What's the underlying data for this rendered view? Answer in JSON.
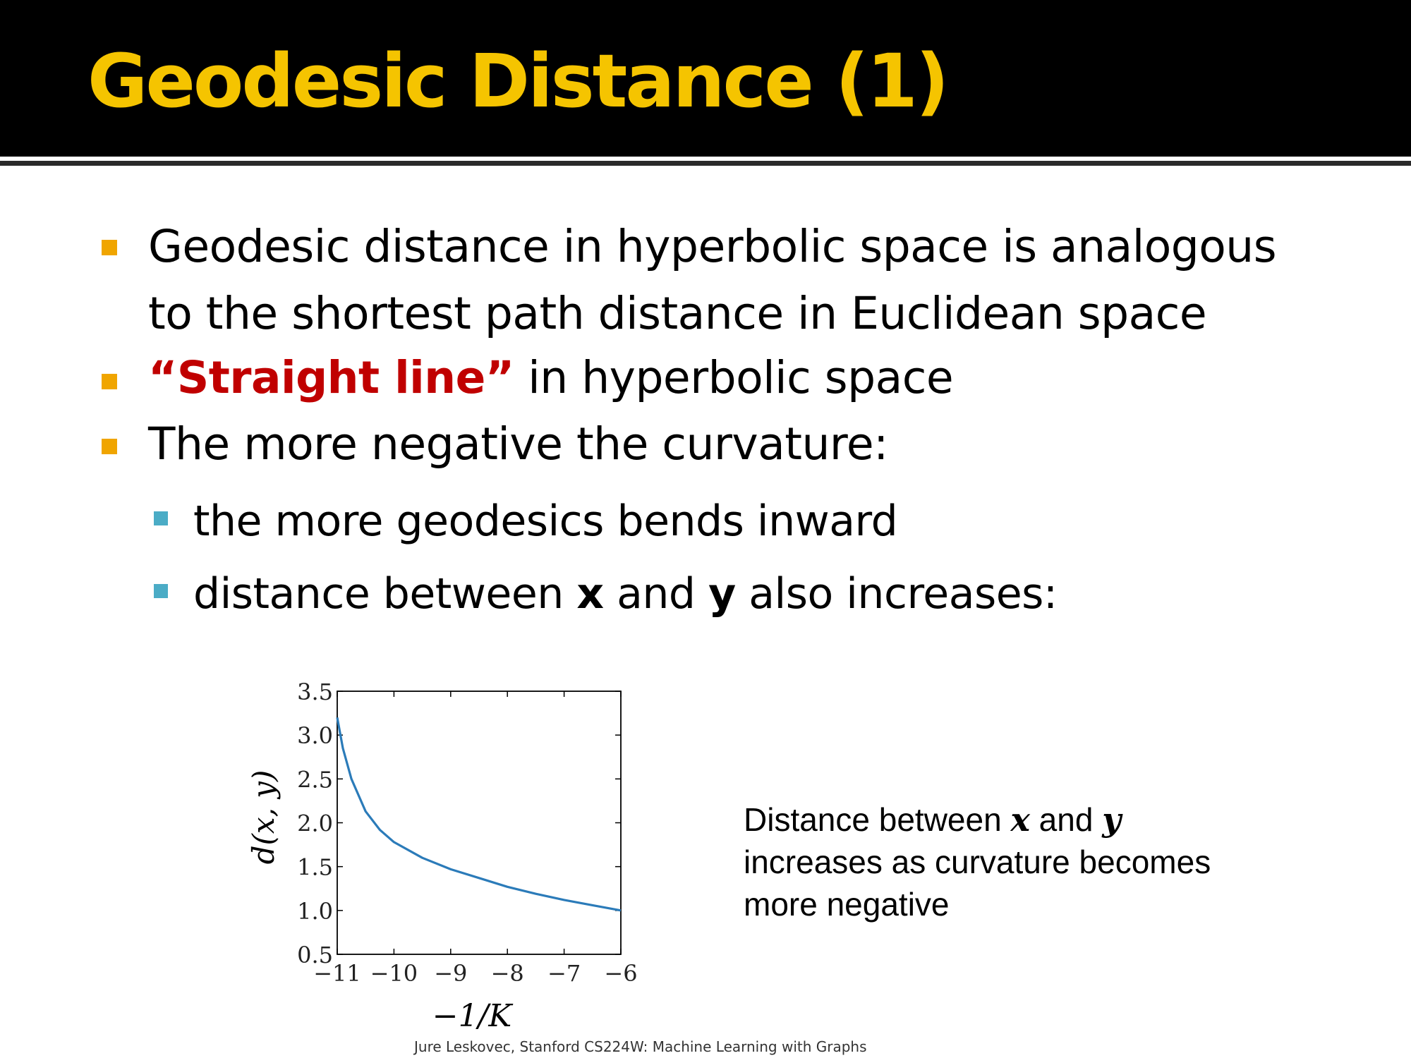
{
  "slide": {
    "title": "Geodesic Distance (1)",
    "colors": {
      "title": "#f5c400",
      "bullet_level1": "#f0a500",
      "bullet_level2": "#4bacc6",
      "emphasis": "#c00000",
      "curve": "#2b7bb9"
    },
    "bullets": [
      {
        "line1": "Geodesic distance in hyperbolic space is analogous",
        "line2": "to the shortest path distance in Euclidean space"
      },
      {
        "emph": "“Straight line”",
        "rest": " in hyperbolic space"
      },
      {
        "text": "The more negative the curvature:"
      }
    ],
    "sub_bullets": [
      {
        "text": "the more geodesics bends inward"
      },
      {
        "pre": "distance between ",
        "x": "x",
        "mid": " and ",
        "y": "y",
        "post": " also increases:"
      }
    ],
    "caption": {
      "pre": "Distance between ",
      "x": "x",
      "mid": " and ",
      "y": "y",
      "line2": "increases as curvature becomes",
      "line3": "more negative"
    },
    "footer": "Jure Leskovec, Stanford CS224W: Machine Learning with Graphs"
  },
  "chart_data": {
    "type": "line",
    "xlabel": "−1/K",
    "ylabel": "d(x, y)",
    "xlim": [
      -11,
      -6
    ],
    "ylim": [
      0.5,
      3.5
    ],
    "xticks": [
      "−11",
      "−10",
      "−9",
      "−8",
      "−7",
      "−6"
    ],
    "yticks": [
      "0.5",
      "1.0",
      "1.5",
      "2.0",
      "2.5",
      "3.0",
      "3.5"
    ],
    "grid": false,
    "series": [
      {
        "x": [
          -11,
          -10.9,
          -10.75,
          -10.5,
          -10.25,
          -10,
          -9.5,
          -9,
          -8.5,
          -8,
          -7.5,
          -7,
          -6.5,
          -6
        ],
        "y": [
          3.2,
          2.85,
          2.5,
          2.13,
          1.92,
          1.78,
          1.6,
          1.47,
          1.37,
          1.27,
          1.19,
          1.12,
          1.06,
          1.0
        ]
      }
    ]
  }
}
